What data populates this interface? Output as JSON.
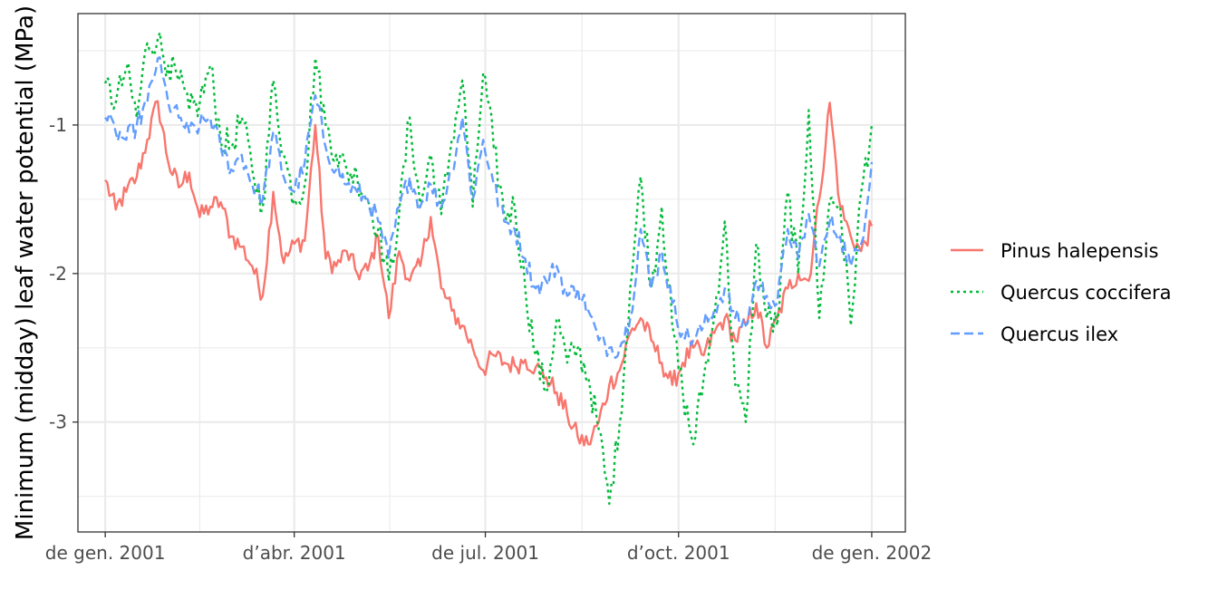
{
  "chart_data": {
    "type": "line",
    "title": "",
    "xlabel": "",
    "ylabel": "Minimum (midday) leaf water potential (MPa)",
    "x_ticks": [
      {
        "date": "2001-01-01",
        "label": "de gen. 2001"
      },
      {
        "date": "2001-04-01",
        "label": "d’abr. 2001"
      },
      {
        "date": "2001-07-01",
        "label": "de jul. 2001"
      },
      {
        "date": "2001-10-01",
        "label": "d’oct. 2001"
      },
      {
        "date": "2002-01-01",
        "label": "de gen. 2002"
      }
    ],
    "xlim": [
      "2000-12-19",
      "2002-01-17"
    ],
    "y_ticks": [
      -3,
      -2,
      -1
    ],
    "ylim": [
      -3.74,
      -0.25
    ],
    "grid": true,
    "legend_position": "right",
    "series": [
      {
        "name": "Pinus halepensis",
        "color": "#F8766D",
        "dash": "solid",
        "points": [
          [
            "2001-01-01",
            -1.37
          ],
          [
            "2001-01-06",
            -1.57
          ],
          [
            "2001-01-11",
            -1.45
          ],
          [
            "2001-01-16",
            -1.35
          ],
          [
            "2001-01-21",
            -1.1
          ],
          [
            "2001-01-26",
            -0.84
          ],
          [
            "2001-01-31",
            -1.25
          ],
          [
            "2001-02-05",
            -1.42
          ],
          [
            "2001-02-10",
            -1.32
          ],
          [
            "2001-02-15",
            -1.62
          ],
          [
            "2001-02-20",
            -1.55
          ],
          [
            "2001-02-25",
            -1.52
          ],
          [
            "2001-03-02",
            -1.75
          ],
          [
            "2001-03-07",
            -1.82
          ],
          [
            "2001-03-12",
            -1.95
          ],
          [
            "2001-03-17",
            -2.15
          ],
          [
            "2001-03-22",
            -1.45
          ],
          [
            "2001-03-27",
            -1.93
          ],
          [
            "2001-04-01",
            -1.8
          ],
          [
            "2001-04-06",
            -1.78
          ],
          [
            "2001-04-11",
            -1.0
          ],
          [
            "2001-04-16",
            -1.9
          ],
          [
            "2001-04-21",
            -1.95
          ],
          [
            "2001-04-26",
            -1.85
          ],
          [
            "2001-05-01",
            -2.0
          ],
          [
            "2001-05-06",
            -1.98
          ],
          [
            "2001-05-11",
            -1.75
          ],
          [
            "2001-05-16",
            -2.3
          ],
          [
            "2001-05-21",
            -1.85
          ],
          [
            "2001-05-26",
            -2.05
          ],
          [
            "2001-05-31",
            -1.95
          ],
          [
            "2001-06-05",
            -1.62
          ],
          [
            "2001-06-10",
            -2.1
          ],
          [
            "2001-06-15",
            -2.25
          ],
          [
            "2001-06-20",
            -2.35
          ],
          [
            "2001-06-25",
            -2.5
          ],
          [
            "2001-06-30",
            -2.65
          ],
          [
            "2001-07-05",
            -2.55
          ],
          [
            "2001-07-10",
            -2.6
          ],
          [
            "2001-07-15",
            -2.62
          ],
          [
            "2001-07-20",
            -2.58
          ],
          [
            "2001-07-25",
            -2.63
          ],
          [
            "2001-07-30",
            -2.7
          ],
          [
            "2001-08-04",
            -2.8
          ],
          [
            "2001-08-09",
            -2.95
          ],
          [
            "2001-08-14",
            -3.1
          ],
          [
            "2001-08-19",
            -3.15
          ],
          [
            "2001-08-24",
            -3.0
          ],
          [
            "2001-08-29",
            -2.75
          ],
          [
            "2001-09-03",
            -2.65
          ],
          [
            "2001-09-08",
            -2.4
          ],
          [
            "2001-09-13",
            -2.3
          ],
          [
            "2001-09-18",
            -2.45
          ],
          [
            "2001-09-23",
            -2.6
          ],
          [
            "2001-09-28",
            -2.75
          ],
          [
            "2001-10-03",
            -2.6
          ],
          [
            "2001-10-08",
            -2.5
          ],
          [
            "2001-10-13",
            -2.55
          ],
          [
            "2001-10-18",
            -2.4
          ],
          [
            "2001-10-23",
            -2.3
          ],
          [
            "2001-10-28",
            -2.45
          ],
          [
            "2001-11-02",
            -2.35
          ],
          [
            "2001-11-07",
            -2.2
          ],
          [
            "2001-11-12",
            -2.5
          ],
          [
            "2001-11-17",
            -2.3
          ],
          [
            "2001-11-22",
            -2.1
          ],
          [
            "2001-11-27",
            -2.0
          ],
          [
            "2001-12-02",
            -2.05
          ],
          [
            "2001-12-07",
            -1.5
          ],
          [
            "2001-12-12",
            -0.85
          ],
          [
            "2001-12-17",
            -1.55
          ],
          [
            "2001-12-22",
            -1.75
          ],
          [
            "2001-12-27",
            -1.85
          ],
          [
            "2002-01-01",
            -1.68
          ]
        ]
      },
      {
        "name": "Quercus coccifera",
        "color": "#00BA38",
        "dash": "dotted",
        "points": [
          [
            "2001-01-01",
            -0.72
          ],
          [
            "2001-01-06",
            -0.85
          ],
          [
            "2001-01-11",
            -0.62
          ],
          [
            "2001-01-16",
            -0.95
          ],
          [
            "2001-01-21",
            -0.45
          ],
          [
            "2001-01-26",
            -0.42
          ],
          [
            "2001-01-31",
            -0.6
          ],
          [
            "2001-02-05",
            -0.7
          ],
          [
            "2001-02-10",
            -0.9
          ],
          [
            "2001-02-15",
            -0.85
          ],
          [
            "2001-02-20",
            -0.6
          ],
          [
            "2001-02-25",
            -1.1
          ],
          [
            "2001-03-02",
            -1.15
          ],
          [
            "2001-03-07",
            -0.95
          ],
          [
            "2001-03-12",
            -1.3
          ],
          [
            "2001-03-17",
            -1.55
          ],
          [
            "2001-03-22",
            -0.7
          ],
          [
            "2001-03-27",
            -1.2
          ],
          [
            "2001-04-01",
            -1.5
          ],
          [
            "2001-04-06",
            -1.4
          ],
          [
            "2001-04-11",
            -0.55
          ],
          [
            "2001-04-16",
            -1.0
          ],
          [
            "2001-04-21",
            -1.2
          ],
          [
            "2001-04-26",
            -1.3
          ],
          [
            "2001-05-01",
            -1.35
          ],
          [
            "2001-05-06",
            -1.5
          ],
          [
            "2001-05-11",
            -1.7
          ],
          [
            "2001-05-16",
            -2.05
          ],
          [
            "2001-05-21",
            -1.6
          ],
          [
            "2001-05-26",
            -0.95
          ],
          [
            "2001-05-31",
            -1.55
          ],
          [
            "2001-06-05",
            -1.2
          ],
          [
            "2001-06-10",
            -1.6
          ],
          [
            "2001-06-15",
            -1.1
          ],
          [
            "2001-06-20",
            -0.7
          ],
          [
            "2001-06-25",
            -1.55
          ],
          [
            "2001-06-30",
            -0.65
          ],
          [
            "2001-07-05",
            -1.15
          ],
          [
            "2001-07-10",
            -1.6
          ],
          [
            "2001-07-15",
            -1.55
          ],
          [
            "2001-07-20",
            -2.1
          ],
          [
            "2001-07-25",
            -2.55
          ],
          [
            "2001-07-30",
            -2.8
          ],
          [
            "2001-08-04",
            -2.3
          ],
          [
            "2001-08-09",
            -2.6
          ],
          [
            "2001-08-14",
            -2.5
          ],
          [
            "2001-08-19",
            -2.7
          ],
          [
            "2001-08-24",
            -3.05
          ],
          [
            "2001-08-29",
            -3.55
          ],
          [
            "2001-09-03",
            -3.0
          ],
          [
            "2001-09-08",
            -2.1
          ],
          [
            "2001-09-13",
            -1.35
          ],
          [
            "2001-09-18",
            -2.1
          ],
          [
            "2001-09-23",
            -1.55
          ],
          [
            "2001-09-28",
            -2.35
          ],
          [
            "2001-10-03",
            -2.8
          ],
          [
            "2001-10-08",
            -3.15
          ],
          [
            "2001-10-13",
            -2.7
          ],
          [
            "2001-10-18",
            -2.3
          ],
          [
            "2001-10-23",
            -1.65
          ],
          [
            "2001-10-28",
            -2.75
          ],
          [
            "2001-11-02",
            -3.0
          ],
          [
            "2001-11-07",
            -1.8
          ],
          [
            "2001-11-12",
            -2.3
          ],
          [
            "2001-11-17",
            -2.35
          ],
          [
            "2001-11-22",
            -1.45
          ],
          [
            "2001-11-27",
            -2.0
          ],
          [
            "2001-12-02",
            -0.9
          ],
          [
            "2001-12-07",
            -2.3
          ],
          [
            "2001-12-12",
            -1.5
          ],
          [
            "2001-12-17",
            -1.55
          ],
          [
            "2001-12-22",
            -2.35
          ],
          [
            "2001-12-27",
            -1.45
          ],
          [
            "2002-01-01",
            -1.0
          ]
        ]
      },
      {
        "name": "Quercus ilex",
        "color": "#619CFF",
        "dash": "dashed",
        "points": [
          [
            "2001-01-01",
            -0.95
          ],
          [
            "2001-01-06",
            -1.05
          ],
          [
            "2001-01-11",
            -1.1
          ],
          [
            "2001-01-16",
            -1.0
          ],
          [
            "2001-01-21",
            -0.85
          ],
          [
            "2001-01-26",
            -0.55
          ],
          [
            "2001-01-31",
            -0.85
          ],
          [
            "2001-02-05",
            -0.95
          ],
          [
            "2001-02-10",
            -1.05
          ],
          [
            "2001-02-15",
            -1.0
          ],
          [
            "2001-02-20",
            -0.95
          ],
          [
            "2001-02-25",
            -1.15
          ],
          [
            "2001-03-02",
            -1.3
          ],
          [
            "2001-03-07",
            -1.2
          ],
          [
            "2001-03-12",
            -1.4
          ],
          [
            "2001-03-17",
            -1.5
          ],
          [
            "2001-03-22",
            -1.05
          ],
          [
            "2001-03-27",
            -1.35
          ],
          [
            "2001-04-01",
            -1.45
          ],
          [
            "2001-04-06",
            -1.25
          ],
          [
            "2001-04-11",
            -0.8
          ],
          [
            "2001-04-16",
            -1.15
          ],
          [
            "2001-04-21",
            -1.3
          ],
          [
            "2001-04-26",
            -1.4
          ],
          [
            "2001-05-01",
            -1.45
          ],
          [
            "2001-05-06",
            -1.5
          ],
          [
            "2001-05-11",
            -1.65
          ],
          [
            "2001-05-16",
            -1.9
          ],
          [
            "2001-05-21",
            -1.55
          ],
          [
            "2001-05-26",
            -1.35
          ],
          [
            "2001-05-31",
            -1.55
          ],
          [
            "2001-06-05",
            -1.4
          ],
          [
            "2001-06-10",
            -1.55
          ],
          [
            "2001-06-15",
            -1.3
          ],
          [
            "2001-06-20",
            -0.95
          ],
          [
            "2001-06-25",
            -1.5
          ],
          [
            "2001-06-30",
            -1.1
          ],
          [
            "2001-07-05",
            -1.4
          ],
          [
            "2001-07-10",
            -1.65
          ],
          [
            "2001-07-15",
            -1.7
          ],
          [
            "2001-07-20",
            -1.9
          ],
          [
            "2001-07-25",
            -2.1
          ],
          [
            "2001-07-30",
            -2.05
          ],
          [
            "2001-08-04",
            -1.95
          ],
          [
            "2001-08-09",
            -2.15
          ],
          [
            "2001-08-14",
            -2.1
          ],
          [
            "2001-08-19",
            -2.25
          ],
          [
            "2001-08-24",
            -2.45
          ],
          [
            "2001-08-29",
            -2.5
          ],
          [
            "2001-09-03",
            -2.5
          ],
          [
            "2001-09-08",
            -2.3
          ],
          [
            "2001-09-13",
            -1.7
          ],
          [
            "2001-09-18",
            -2.1
          ],
          [
            "2001-09-23",
            -1.85
          ],
          [
            "2001-09-28",
            -2.2
          ],
          [
            "2001-10-03",
            -2.4
          ],
          [
            "2001-10-08",
            -2.45
          ],
          [
            "2001-10-13",
            -2.35
          ],
          [
            "2001-10-18",
            -2.25
          ],
          [
            "2001-10-23",
            -2.1
          ],
          [
            "2001-10-28",
            -2.3
          ],
          [
            "2001-11-02",
            -2.35
          ],
          [
            "2001-11-07",
            -2.05
          ],
          [
            "2001-11-12",
            -2.15
          ],
          [
            "2001-11-17",
            -2.2
          ],
          [
            "2001-11-22",
            -1.7
          ],
          [
            "2001-11-27",
            -1.9
          ],
          [
            "2001-12-02",
            -1.6
          ],
          [
            "2001-12-07",
            -1.95
          ],
          [
            "2001-12-12",
            -1.65
          ],
          [
            "2001-12-17",
            -1.75
          ],
          [
            "2001-12-22",
            -1.95
          ],
          [
            "2001-12-27",
            -1.8
          ],
          [
            "2002-01-01",
            -1.25
          ]
        ]
      }
    ]
  }
}
